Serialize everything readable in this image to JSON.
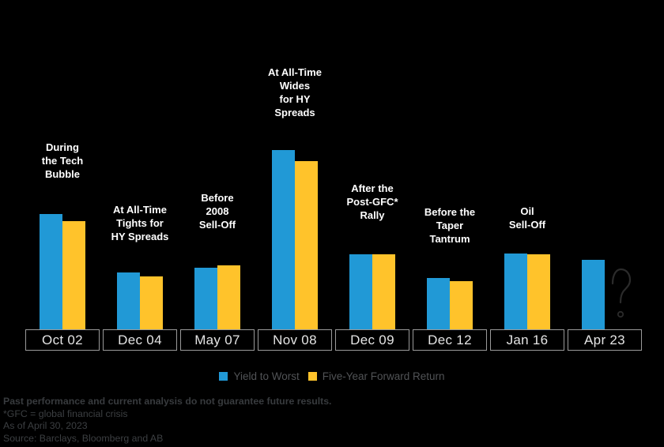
{
  "chart_data": {
    "type": "bar",
    "title": "",
    "categories": [
      "Oct 02",
      "Dec 04",
      "May 07",
      "Nov 08",
      "Dec 09",
      "Dec 12",
      "Jan 16",
      "Apr 23"
    ],
    "series": [
      {
        "name": "Yield to Worst",
        "color": "#2199D6",
        "values": [
          13.9,
          6.9,
          7.4,
          21.6,
          9.0,
          6.2,
          9.1,
          8.4
        ]
      },
      {
        "name": "Five-Year Forward Return",
        "color": "#FFC32B",
        "values": [
          13.0,
          6.4,
          7.7,
          20.3,
          9.0,
          5.8,
          9.0,
          null
        ]
      }
    ],
    "note": "No y-axis shown in figure; values estimated from bar heights in percent.",
    "ylim": [
      0,
      24
    ],
    "grid": false,
    "legend_position": "bottom",
    "annotations": [
      {
        "category": "Oct 02",
        "text": "During\nthe Tech\nBubble"
      },
      {
        "category": "Dec 04",
        "text": "At All-Time\nTights for\nHY Spreads"
      },
      {
        "category": "May 07",
        "text": "Before\n2008\nSell-Off"
      },
      {
        "category": "Nov 08",
        "text": "At All-Time\nWides\nfor HY\nSpreads"
      },
      {
        "category": "Dec 09",
        "text": "After the\nPost-GFC*\nRally"
      },
      {
        "category": "Dec 12",
        "text": "Before the\nTaper\nTantrum"
      },
      {
        "category": "Jan 16",
        "text": "Oil\nSell-Off"
      }
    ],
    "missing_marker": {
      "category": "Apr 23",
      "series": "Five-Year Forward Return",
      "symbol": "?"
    }
  },
  "legend": {
    "items": [
      {
        "label": "Yield to Worst",
        "color": "#2199D6"
      },
      {
        "label": "Five-Year Forward Return",
        "color": "#FFC32B"
      }
    ]
  },
  "footer": {
    "disclaimer": "Past performance and current analysis do not guarantee future results.",
    "footnote": "*GFC = global financial crisis",
    "as_of": "As of April 30, 2023",
    "source": "Source: Barclays, Bloomberg and AB"
  },
  "colors": {
    "background": "#000000",
    "bar_blue": "#2199D6",
    "bar_yellow": "#FFC32B",
    "annotation_text": "#FFFFFF",
    "axis_box_border": "#9A9A9A",
    "axis_box_text": "#E5E5E5",
    "legend_text": "#515356",
    "footer_text": "#3C3F42",
    "footer_bold_text": "#383B3E",
    "question_mark": "#2B2B2B"
  }
}
